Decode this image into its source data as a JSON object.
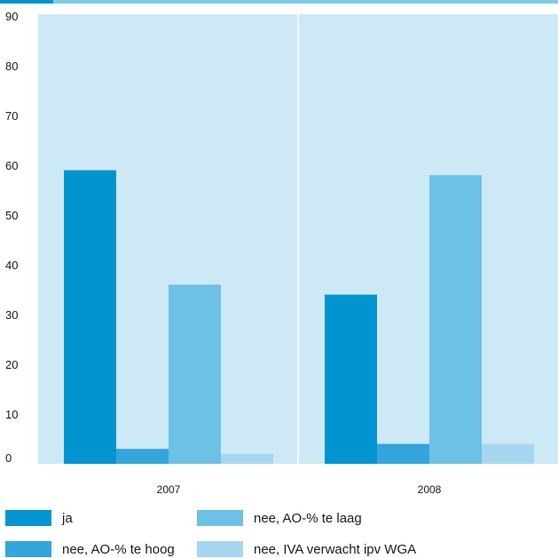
{
  "chart_data": {
    "type": "bar",
    "categories": [
      "2007",
      "2008"
    ],
    "ylim": [
      0,
      90
    ],
    "yticks": [
      0,
      10,
      20,
      30,
      40,
      50,
      60,
      70,
      80,
      90
    ],
    "grid": false,
    "background": "#cde9f5",
    "series": [
      {
        "name": "ja",
        "values": [
          59,
          34
        ],
        "color": "#0095d1"
      },
      {
        "name": "nee, AO-% te hoog",
        "values": [
          3,
          4
        ],
        "color": "#33a6dc"
      },
      {
        "name": "nee, AO-% te laag",
        "values": [
          36,
          58
        ],
        "color": "#6cc1e6"
      },
      {
        "name": "nee, IVA verwacht ipv WGA",
        "values": [
          2,
          4
        ],
        "color": "#a5d8f0"
      }
    ],
    "legend": "bottom"
  }
}
